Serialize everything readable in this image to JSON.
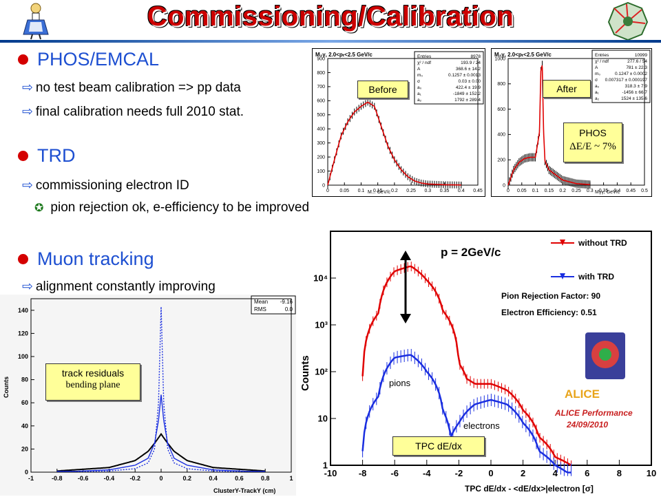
{
  "slide": {
    "title": "Commissioning/Calibration",
    "bullets": [
      {
        "label": "PHOS/EMCAL",
        "subs": [
          "no test beam calibration => pp data",
          "final calibration needs full 2010 stat."
        ]
      },
      {
        "label": "TRD",
        "subs": [
          "commissioning electron ID"
        ],
        "subsubs": [
          "pion rejection ok, e-efficiency to be improved"
        ]
      },
      {
        "label": "Muon tracking",
        "subs": [
          "alignment constantly improving"
        ]
      }
    ],
    "logo_left_icon": "alice-in-wonderland-icon",
    "logo_right_icon": "alice-experiment-logo-icon"
  },
  "phos_before": {
    "header": "M₂γ, 2.0<pₜ<2.5 GeV/c",
    "tag": "Before",
    "xlabel": "M... GeV/c",
    "stats": [
      [
        "Entries",
        "8978"
      ],
      [
        "χ² / ndf",
        "193.9 / 24"
      ],
      [
        "A",
        "368.6 ± 14.2"
      ],
      [
        "m₀",
        "0.1257 ± 0.0013"
      ],
      [
        "σ",
        "0.03 ± 0.00"
      ],
      [
        "a₀",
        "422.4 ± 19.9"
      ],
      [
        "a₁",
        "-1849 ± 152.2"
      ],
      [
        "a₂",
        "1792 ± 289.4"
      ]
    ]
  },
  "phos_after": {
    "header": "M₂γ, 2.0<pₜ<2.5 GeV/c",
    "tag": "After",
    "xlabel": "Mγγ, GeV/c",
    "stats": [
      [
        "Entries",
        "10999"
      ],
      [
        "χ² / ndf",
        "277.6 / 54"
      ],
      [
        "A",
        "781 ± 22.3"
      ],
      [
        "m₀",
        "0.1247 ± 0.0002"
      ],
      [
        "σ",
        "0.007317 ± 0.000197"
      ],
      [
        "a₀",
        "318.3 ± 7.9"
      ],
      [
        "a₁",
        "-1456 ± 66.7"
      ],
      [
        "a₂",
        "1524 ± 135.6"
      ]
    ],
    "phos_label": "PHOS",
    "resolution": "ΔE/E ~ 7%"
  },
  "trd_plot": {
    "ylabel": "Counts",
    "xlabel": "TPC dE/dx - <dE/dx>|electron [σ]",
    "momentum": "p = 2GeV/c",
    "legend_without": "without TRD",
    "legend_with": "with TRD",
    "pion_rejection": "Pion Rejection Factor: 90",
    "electron_eff": "Electron Efficiency: 0.51",
    "alice_label": "ALICE",
    "alice_perf": "ALICE Performance",
    "date": "24/09/2010",
    "pions_label": "pions",
    "electrons_label": "electrons",
    "tag": "TPC dE/dx",
    "colors": {
      "without": "#e00000",
      "with": "#1a2ee0"
    }
  },
  "muon_plot": {
    "ylabel": "Counts",
    "xlabel": "ClusterY-TrackY (cm)",
    "stats": [
      [
        "Mean",
        "-9.16"
      ],
      [
        "RMS",
        "0.0"
      ]
    ],
    "tag_line1": "track residuals",
    "tag_line2": "bending plane"
  },
  "chart_data": [
    {
      "type": "line",
      "title": "",
      "xlabel": "M... GeV/c",
      "ylabel": "",
      "xlim": [
        0,
        0.45
      ],
      "ylim": [
        0,
        900
      ],
      "x_ticks": [
        0,
        0.05,
        0.1,
        0.15,
        0.2,
        0.25,
        0.3,
        0.35,
        0.4,
        0.45
      ],
      "y_ticks": [
        0,
        100,
        200,
        300,
        400,
        500,
        600,
        700,
        800,
        900
      ],
      "series": [
        {
          "x": [
            0.0,
            0.02,
            0.04,
            0.06,
            0.08,
            0.1,
            0.12,
            0.14,
            0.16,
            0.18,
            0.2,
            0.22,
            0.24,
            0.26,
            0.28,
            0.3,
            0.35,
            0.4
          ],
          "values": [
            0,
            180,
            350,
            450,
            520,
            560,
            590,
            560,
            420,
            280,
            180,
            110,
            60,
            30,
            15,
            8,
            3,
            1
          ]
        }
      ]
    },
    {
      "type": "line",
      "title": "",
      "xlabel": "Mγγ, GeV/c",
      "ylabel": "",
      "xlim": [
        0,
        0.5
      ],
      "ylim": [
        0,
        1000
      ],
      "x_ticks": [
        0,
        0.05,
        0.1,
        0.15,
        0.2,
        0.25,
        0.3,
        0.35,
        0.4,
        0.45,
        0.5
      ],
      "y_ticks": [
        0,
        200,
        400,
        600,
        800,
        1000
      ],
      "series": [
        {
          "x": [
            0.0,
            0.02,
            0.04,
            0.06,
            0.08,
            0.1,
            0.115,
            0.12,
            0.125,
            0.13,
            0.135,
            0.15,
            0.2,
            0.25,
            0.3
          ],
          "values": [
            0,
            120,
            180,
            210,
            220,
            220,
            420,
            900,
            950,
            420,
            190,
            120,
            40,
            12,
            4
          ]
        }
      ]
    },
    {
      "type": "line",
      "title": "",
      "xlabel": "TPC dE/dx - <dE/dx>|electron [σ]",
      "ylabel": "Counts",
      "xlim": [
        -10,
        10
      ],
      "ylim": [
        1,
        100000
      ],
      "y_scale": "log",
      "x_ticks": [
        -10,
        -8,
        -6,
        -4,
        -2,
        0,
        2,
        4,
        6,
        8,
        10
      ],
      "y_ticks": [
        1,
        10,
        100,
        1000,
        10000
      ],
      "series": [
        {
          "name": "without TRD",
          "x": [
            -8.0,
            -7.0,
            -6.0,
            -5.0,
            -4.0,
            -3.0,
            -2.0,
            -1.5,
            -1.0,
            0.0,
            1.0,
            2.0,
            3.0,
            4.0,
            5.0
          ],
          "values": [
            80,
            1800,
            14000,
            18000,
            9000,
            2000,
            150,
            70,
            55,
            55,
            40,
            15,
            4,
            1.5,
            1
          ]
        },
        {
          "name": "with TRD",
          "x": [
            -8.0,
            -7.0,
            -6.0,
            -5.0,
            -4.0,
            -3.0,
            -2.5,
            -2.0,
            -1.0,
            0.0,
            1.0,
            2.0,
            3.0,
            4.0,
            5.0
          ],
          "values": [
            2,
            30,
            200,
            230,
            100,
            15,
            4,
            8,
            20,
            25,
            20,
            8,
            2,
            1,
            0.6
          ]
        }
      ]
    },
    {
      "type": "line",
      "title": "",
      "xlabel": "ClusterY-TrackY (cm)",
      "ylabel": "Counts",
      "xlim": [
        -1,
        1
      ],
      "ylim": [
        0,
        150
      ],
      "x_ticks": [
        -1,
        -0.8,
        -0.6,
        -0.4,
        -0.2,
        0,
        0.2,
        0.4,
        0.6,
        0.8,
        1
      ],
      "y_ticks": [
        0,
        20,
        40,
        60,
        80,
        100,
        120,
        140
      ],
      "series": [
        {
          "x": [
            -0.8,
            -0.4,
            -0.2,
            -0.1,
            -0.05,
            0.0,
            0.05,
            0.1,
            0.2,
            0.4,
            0.8
          ],
          "values": [
            1,
            4,
            10,
            18,
            25,
            33,
            25,
            18,
            10,
            4,
            1
          ]
        },
        {
          "x": [
            -0.8,
            -0.4,
            -0.2,
            -0.1,
            -0.05,
            -0.02,
            0.0,
            0.02,
            0.05,
            0.1,
            0.2,
            0.4,
            0.8
          ],
          "values": [
            0,
            2,
            6,
            12,
            25,
            45,
            67,
            45,
            25,
            12,
            6,
            2,
            0
          ]
        },
        {
          "x": [
            -0.8,
            -0.4,
            -0.2,
            -0.1,
            -0.05,
            -0.02,
            0.0,
            0.02,
            0.05,
            0.1,
            0.2,
            0.4,
            0.8
          ],
          "values": [
            0,
            1,
            3,
            8,
            20,
            60,
            143,
            60,
            20,
            8,
            3,
            1,
            0
          ]
        }
      ]
    }
  ]
}
